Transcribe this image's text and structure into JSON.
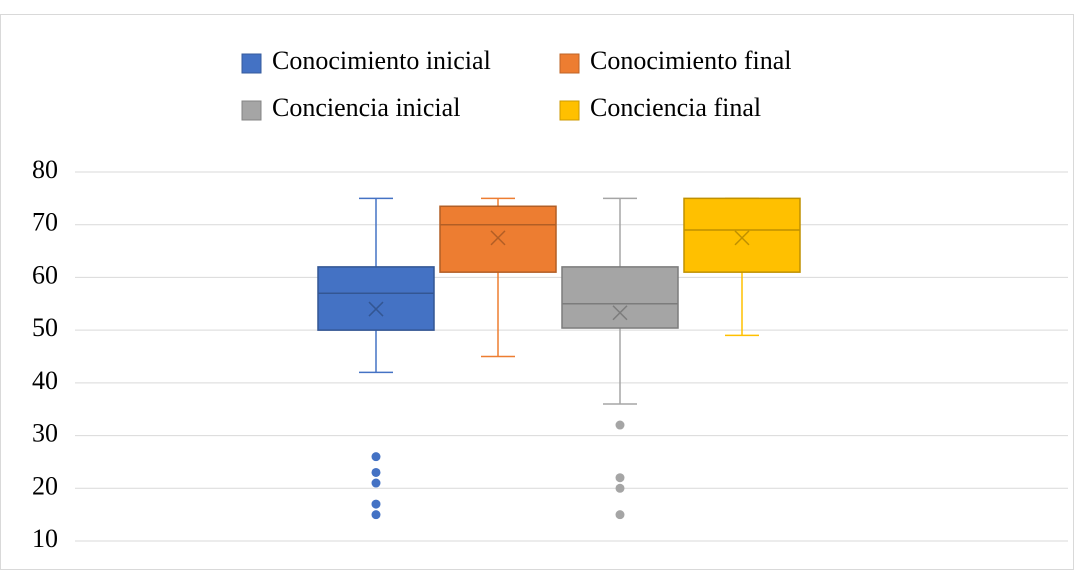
{
  "chart_data": {
    "type": "box",
    "ylim": [
      10,
      80
    ],
    "yticks": [
      10,
      20,
      30,
      40,
      50,
      60,
      70,
      80
    ],
    "grid": true,
    "legend": "top",
    "series": [
      {
        "name": "Conocimiento inicial",
        "color": "#4472c4",
        "min": 42,
        "q1": 50,
        "median": 57,
        "q3": 62,
        "max": 75,
        "mean": 54,
        "outliers": [
          26,
          23,
          21,
          17,
          15
        ]
      },
      {
        "name": "Conocimiento final",
        "color": "#ed7d31",
        "min": 45,
        "q1": 61,
        "median": 70,
        "q3": 73.5,
        "max": 75,
        "mean": 67.5,
        "outliers": []
      },
      {
        "name": "Conciencia inicial",
        "color": "#a5a5a5",
        "min": 36,
        "q1": 50.4,
        "median": 55,
        "q3": 62,
        "max": 75,
        "mean": 53.3,
        "outliers": [
          32,
          22,
          20,
          15
        ]
      },
      {
        "name": "Conciencia final",
        "color": "#ffc000",
        "min": 49,
        "q1": 61,
        "median": 69,
        "q3": 75,
        "max": 75,
        "mean": 67.5,
        "outliers": []
      }
    ]
  }
}
